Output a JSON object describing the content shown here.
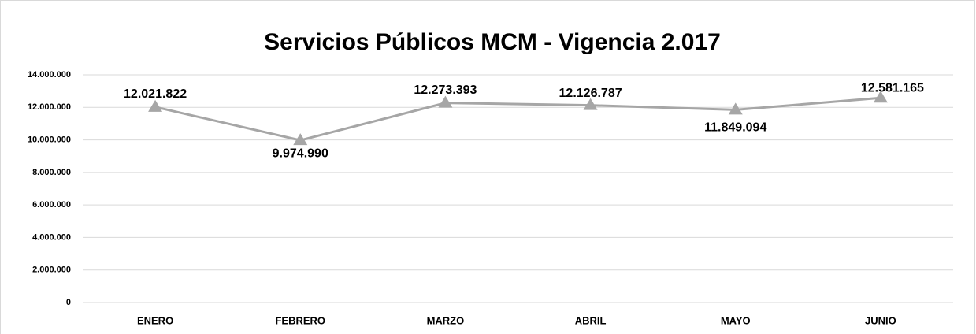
{
  "chart_data": {
    "type": "line",
    "title": "Servicios Públicos MCM - Vigencia 2.017",
    "categories": [
      "ENERO",
      "FEBRERO",
      "MARZO",
      "ABRIL",
      "MAYO",
      "JUNIO"
    ],
    "series": [
      {
        "name": "Servicios Públicos",
        "color": "#a6a6a6",
        "values": [
          12021822,
          9974990,
          12273393,
          12126787,
          11849094,
          12581165
        ],
        "value_labels": [
          "12.021.822",
          "9.974.990",
          "12.273.393",
          "12.126.787",
          "11.849.094",
          "12.581.165"
        ]
      }
    ],
    "ylim": [
      0,
      14000000
    ],
    "yticks": [
      0,
      {
        "value": 2000000,
        "label": "2.000.000"
      },
      {
        "value": 4000000,
        "label": "4.000.000"
      },
      {
        "value": 6000000,
        "label": "6.000.000"
      },
      {
        "value": 8000000,
        "label": "8.000.000"
      },
      {
        "value": 10000000,
        "label": "10.000.000"
      },
      {
        "value": 12000000,
        "label": "12.000.000"
      },
      {
        "value": 14000000,
        "label": "14.000.000"
      }
    ],
    "grid": true
  }
}
